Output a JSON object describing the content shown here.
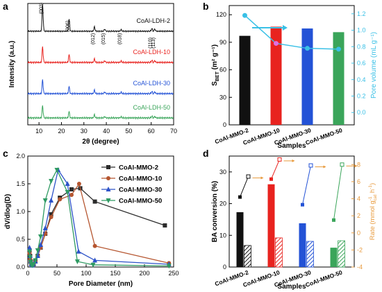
{
  "colors": {
    "black": "#111111",
    "red": "#e8231f",
    "blue": "#2352d6",
    "green": "#3aa55a",
    "darkred": "#b24a36",
    "cyan": "#39c0e6",
    "orange": "#e89a3c",
    "navy": "#2d3c8f",
    "c_mmo10": "#b5552f",
    "c_mmo30": "#2c52c8",
    "c_mmo50": "#2e9a62"
  },
  "chart_data": [
    {
      "panel": "a",
      "type": "line",
      "xlabel": "2θ (degree)",
      "ylabel": "Intensity (a.u.)",
      "xlim": [
        5,
        70
      ],
      "xticks": [
        10,
        20,
        30,
        40,
        50,
        60,
        70
      ],
      "peak_labels": [
        {
          "label": "(003)",
          "x": 11.6
        },
        {
          "label": "(006)",
          "x": 23.4
        },
        {
          "label": "(012)",
          "x": 34.7
        },
        {
          "label": "(015)",
          "x": 39.3
        },
        {
          "label": "(018)",
          "x": 46.6
        },
        {
          "label": "(110)",
          "x": 60.3
        },
        {
          "label": "(113)",
          "x": 61.6
        }
      ],
      "series": [
        {
          "name": "CoAl-LDH-2",
          "color": "#111111",
          "offset": 3,
          "peaks": [
            [
              11.6,
              1.0
            ],
            [
              23.4,
              0.45
            ],
            [
              34.7,
              0.16
            ],
            [
              39.3,
              0.08
            ],
            [
              46.6,
              0.06
            ],
            [
              60.3,
              0.1
            ],
            [
              61.6,
              0.08
            ]
          ]
        },
        {
          "name": "CoAl-LDH-10",
          "color": "#e8231f",
          "offset": 2,
          "peaks": [
            [
              11.6,
              0.45
            ],
            [
              23.4,
              0.22
            ],
            [
              34.7,
              0.1
            ],
            [
              39.3,
              0.05
            ],
            [
              46.6,
              0.04
            ],
            [
              60.3,
              0.06
            ],
            [
              61.6,
              0.05
            ]
          ]
        },
        {
          "name": "CoAl-LDH-30",
          "color": "#2352d6",
          "offset": 1,
          "peaks": [
            [
              11.6,
              0.4
            ],
            [
              23.4,
              0.2
            ],
            [
              34.7,
              0.1
            ],
            [
              39.3,
              0.05
            ],
            [
              46.6,
              0.04
            ],
            [
              60.3,
              0.06
            ],
            [
              61.6,
              0.05
            ]
          ]
        },
        {
          "name": "CoAl-LDH-50",
          "color": "#3aa55a",
          "offset": 0,
          "peaks": [
            [
              11.6,
              0.35
            ],
            [
              23.4,
              0.18
            ],
            [
              34.7,
              0.09
            ],
            [
              39.3,
              0.04
            ],
            [
              46.6,
              0.03
            ],
            [
              60.3,
              0.05
            ],
            [
              61.6,
              0.04
            ]
          ]
        }
      ]
    },
    {
      "panel": "b",
      "type": "bar",
      "categories": [
        "CoAl-MMO-2",
        "CoAl-MMO-10",
        "CoAl-MMO-30",
        "CoAl-MMO-50"
      ],
      "xlabel": "Samples",
      "ylabel": "S_BET (m² g⁻¹)",
      "ylabel_main": "S",
      "ylabel_sub": "BET",
      "ylabel_tail": " (m² g⁻¹)",
      "ylim": [
        0,
        130
      ],
      "yticks": [
        0,
        30,
        60,
        90,
        120
      ],
      "values": [
        97,
        107,
        105,
        101
      ],
      "bar_colors": [
        "#111111",
        "#e8231f",
        "#2352d6",
        "#3aa55a"
      ],
      "y2label": "Pore volume (mL g⁻¹)",
      "y2lim": [
        -0.15,
        1.3
      ],
      "y2ticks": [
        "0.0",
        "0.2",
        "0.4",
        "0.6",
        "0.8",
        "1.0",
        "1.2"
      ],
      "y2values": [
        0.0,
        0.2,
        0.4,
        0.6,
        0.8,
        1.0,
        1.2
      ],
      "pore_volume": [
        1.18,
        0.84,
        0.78,
        0.77
      ],
      "line_color": "#39c0e6"
    },
    {
      "panel": "c",
      "type": "line",
      "xlabel": "Pore Diameter (nm)",
      "ylabel": "dV/dlog(D)",
      "xlim": [
        0,
        250
      ],
      "ylim": [
        0,
        2.0
      ],
      "xticks": [
        0,
        50,
        100,
        150,
        200,
        250
      ],
      "yticks": [
        "0.0",
        "0.5",
        "1.0",
        "1.5",
        "2.0"
      ],
      "ytick_values": [
        0.0,
        0.5,
        1.0,
        1.5,
        2.0
      ],
      "series": [
        {
          "name": "CoAl-MMO-2",
          "color": "#2b2b2b",
          "marker": "square",
          "x": [
            3,
            4,
            5,
            6,
            8,
            10,
            13,
            17,
            22,
            30,
            40,
            55,
            75,
            90,
            115,
            235
          ],
          "y": [
            0.3,
            0.2,
            0.1,
            0.05,
            0.03,
            0.05,
            0.1,
            0.2,
            0.35,
            0.6,
            0.95,
            1.25,
            1.4,
            1.42,
            1.18,
            0.75
          ]
        },
        {
          "name": "CoAl-MMO-10",
          "color": "#b5552f",
          "marker": "circle",
          "x": [
            3,
            4,
            5,
            6,
            8,
            10,
            13,
            17,
            22,
            30,
            40,
            55,
            75,
            88,
            115,
            242
          ],
          "y": [
            0.25,
            0.15,
            0.08,
            0.04,
            0.03,
            0.05,
            0.1,
            0.2,
            0.35,
            0.6,
            0.9,
            1.22,
            1.3,
            1.5,
            0.38,
            0.07
          ]
        },
        {
          "name": "CoAl-MMO-30",
          "color": "#2c52c8",
          "marker": "triangle-up",
          "x": [
            3,
            4,
            5,
            6,
            8,
            10,
            13,
            17,
            22,
            30,
            40,
            52,
            68,
            87,
            115,
            242
          ],
          "y": [
            0.35,
            0.2,
            0.1,
            0.05,
            0.03,
            0.06,
            0.1,
            0.2,
            0.4,
            0.7,
            1.2,
            1.75,
            1.5,
            0.28,
            0.12,
            0.05
          ]
        },
        {
          "name": "CoAl-MMO-50",
          "color": "#2e9a62",
          "marker": "triangle-down",
          "x": [
            3,
            4,
            5,
            6,
            8,
            10,
            13,
            17,
            22,
            30,
            40,
            50,
            68,
            85,
            112,
            242
          ],
          "y": [
            0.28,
            0.18,
            0.09,
            0.04,
            0.03,
            0.05,
            0.12,
            0.3,
            0.55,
            1.2,
            1.55,
            1.75,
            1.35,
            0.1,
            0.04,
            0.02
          ]
        }
      ]
    },
    {
      "panel": "d",
      "type": "bar",
      "categories": [
        "CoAl-MMO-2",
        "CoAl-MMO-10",
        "CoAl-MMO-30",
        "CoAl-MMO-50"
      ],
      "xlabel": "Samples",
      "ylabel": "BA conversion (%)",
      "ylim": [
        0,
        35
      ],
      "yticks": [
        0,
        10,
        20,
        30
      ],
      "bar_colors": [
        "#111111",
        "#e8231f",
        "#2352d6",
        "#3aa55a"
      ],
      "solid_values": [
        17.3,
        26.1,
        13.8,
        6.1
      ],
      "hatched_values": [
        6.8,
        9.2,
        8.1,
        8.3
      ],
      "y2label": "Rate (mmol g⁻¹cat h⁻¹)",
      "y2label_main": "Rate (mmol g",
      "y2label_sup": "-1",
      "y2label_sub": "cat",
      "y2label_tail": " h",
      "y2label_sup2": "-1",
      "y2label_close": ")",
      "y2lim": [
        -4,
        9
      ],
      "y2ticks": [
        -4,
        -2,
        0,
        2,
        4,
        6,
        8
      ],
      "rate_solid": [
        4.2,
        6.3,
        3.3,
        1.5
      ],
      "rate_open": [
        6.6,
        8.6,
        7.9,
        8.0
      ]
    }
  ]
}
